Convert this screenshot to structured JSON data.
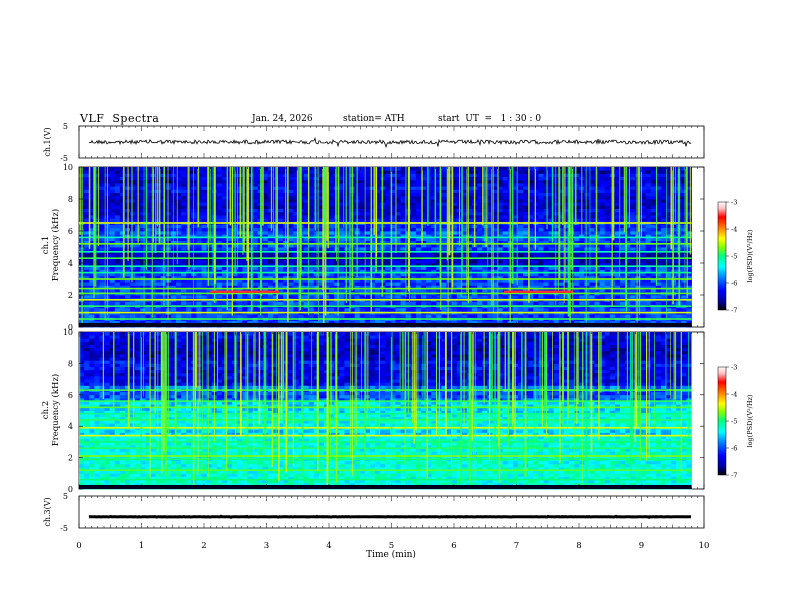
{
  "header": {
    "title": "VLF  Spectra",
    "date": "Jan. 24, 2026",
    "station": "station= ATH",
    "start": "start  UT  =   1 : 30 : 0"
  },
  "colors": {
    "colorbar_stops": [
      "#000000",
      "#0000a0",
      "#0000ff",
      "#0080ff",
      "#00ffff",
      "#00ff80",
      "#80ff00",
      "#ffff00",
      "#ff8000",
      "#ff0000",
      "#ffc0c0",
      "#ffffff"
    ],
    "trace": "#000000"
  },
  "chart_data": [
    {
      "type": "line",
      "name_label": "ch.1(V)",
      "ylabel": "ch.1(V)",
      "ylim": [
        -5,
        5
      ],
      "yticks": [
        "5",
        "-5"
      ],
      "xlim": [
        0,
        10
      ],
      "description_values": {
        "mean": 0,
        "noise_amplitude": 0.8
      }
    },
    {
      "type": "heatmap",
      "ylabel_line1": "ch.1",
      "ylabel_line2": "Frequency  (kHz)",
      "ylim": [
        0,
        10
      ],
      "yticks": [
        "0",
        "2",
        "4",
        "6",
        "8",
        "10"
      ],
      "xlim": [
        0,
        9.8
      ],
      "colorbar": {
        "label": "log(PSD)(V²/Hz)",
        "range": [
          -7,
          -3
        ],
        "ticks": [
          "-3",
          "-4",
          "-5",
          "-6",
          "-7"
        ]
      },
      "bands_khz": [
        0.5,
        0.9,
        1.3,
        1.7,
        2.1,
        2.4,
        3.0,
        3.4,
        3.8,
        4.3,
        4.7,
        5.2,
        5.6,
        6.5
      ],
      "highlight_segments": [
        {
          "f_khz": 2.2,
          "t_start_min": 2.1,
          "t_end_min": 3.2
        },
        {
          "f_khz": 2.2,
          "t_start_min": 6.8,
          "t_end_min": 7.9
        }
      ]
    },
    {
      "type": "heatmap",
      "ylabel_line1": "ch.2",
      "ylabel_line2": "Frequency  (kHz)",
      "ylim": [
        0,
        10
      ],
      "yticks": [
        "0",
        "2",
        "4",
        "6",
        "8",
        "10"
      ],
      "xlim": [
        0,
        9.8
      ],
      "colorbar": {
        "label": "log(PSD)(V²/Hz)",
        "range": [
          -7,
          -3
        ],
        "ticks": [
          "-3",
          "-4",
          "-5",
          "-6",
          "-7"
        ]
      },
      "bands_khz": [
        0.6,
        1.2,
        1.9,
        2.1,
        2.6,
        3.0,
        3.4,
        3.9,
        4.4,
        4.8,
        5.2,
        5.6,
        6.3
      ]
    },
    {
      "type": "line",
      "ylabel": "ch.3(V)",
      "ylim": [
        -5,
        5
      ],
      "yticks": [
        "5",
        "-5"
      ],
      "xlim": [
        0,
        10
      ],
      "description_values": {
        "mean": -1.5,
        "noise_amplitude": 0.1
      }
    }
  ],
  "xaxis": {
    "label": "Time  (min)",
    "ticks": [
      "0",
      "1",
      "2",
      "3",
      "4",
      "5",
      "6",
      "7",
      "8",
      "9",
      "10"
    ]
  }
}
